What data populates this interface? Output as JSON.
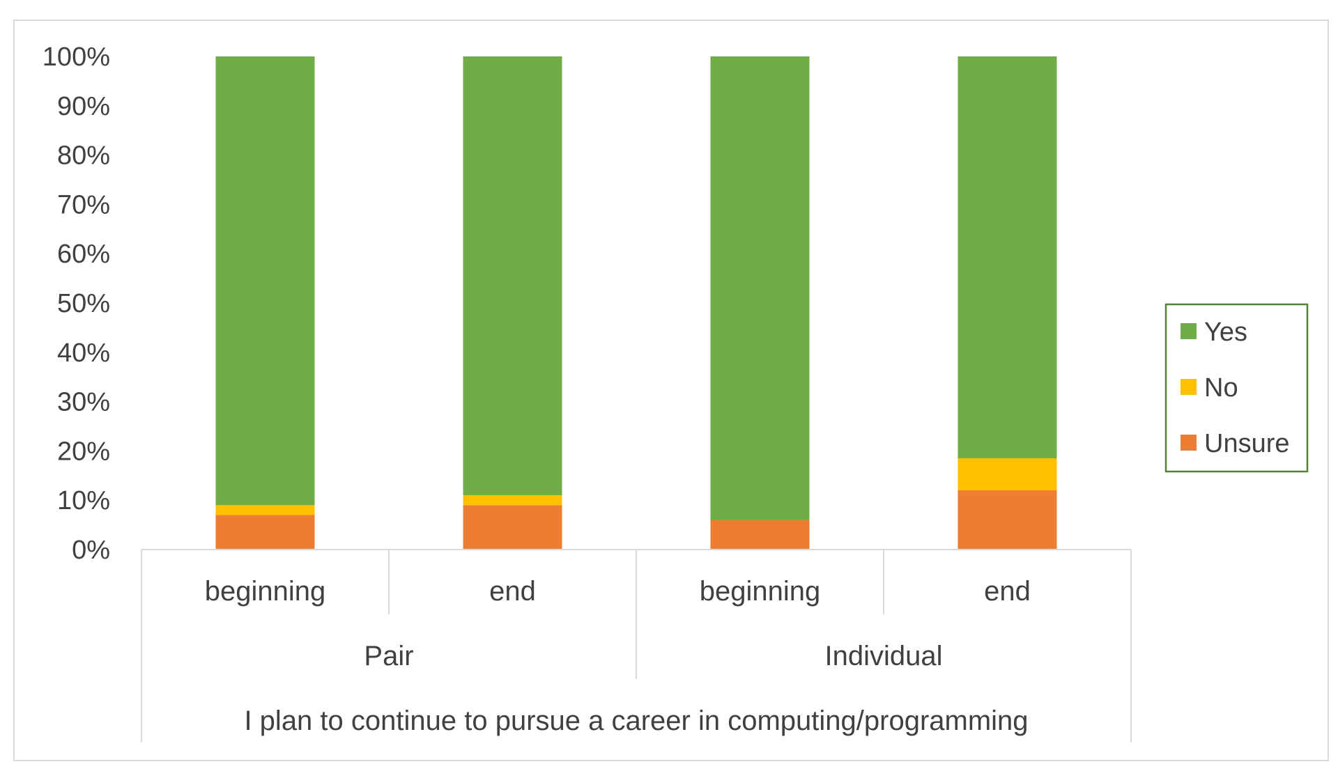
{
  "chart_data": {
    "type": "bar",
    "stacked": true,
    "categories": [
      "beginning",
      "end",
      "beginning",
      "end"
    ],
    "groups": [
      {
        "label": "Pair",
        "categories": [
          0,
          1
        ]
      },
      {
        "label": "Individual",
        "categories": [
          2,
          3
        ]
      }
    ],
    "outer_label": "I plan to continue to pursue a career in computing/programming",
    "series": [
      {
        "name": "Unsure",
        "color": "#ED7D31",
        "values": [
          7,
          9,
          6,
          12
        ]
      },
      {
        "name": "No",
        "color": "#FFC000",
        "values": [
          2,
          2,
          0,
          6.5
        ]
      },
      {
        "name": "Yes",
        "color": "#70AD47",
        "values": [
          91,
          89,
          94,
          81.5
        ]
      }
    ],
    "ylim": [
      0,
      100
    ],
    "yticks": [
      "0%",
      "10%",
      "20%",
      "30%",
      "40%",
      "50%",
      "60%",
      "70%",
      "80%",
      "90%",
      "100%"
    ],
    "legend": {
      "placement": "right",
      "entries": [
        "Yes",
        "No",
        "Unsure"
      ]
    },
    "grid": false,
    "title": "",
    "xlabel": "",
    "ylabel": ""
  }
}
